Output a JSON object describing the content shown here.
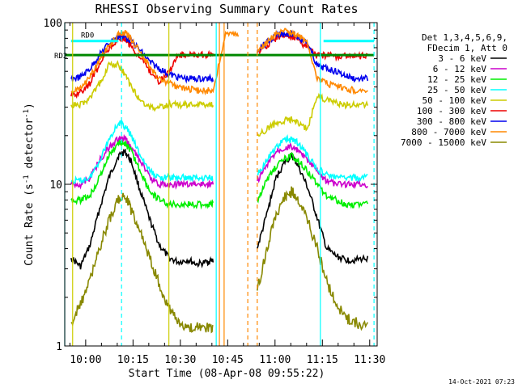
{
  "chart_data": {
    "type": "line",
    "title": "RHESSI Observing Summary Count Rates",
    "xlabel": "Start Time (08-Apr-08 09:55:22)",
    "ylabel_main": "Count Rate (s",
    "ylabel_sup": "-1",
    "ylabel_rest": " detector",
    "ylabel_sup2": "-1",
    "ylabel_end": ")",
    "y_scale": "log",
    "ylim": [
      1,
      100
    ],
    "xlim_minutes_after_start": [
      -2,
      97
    ],
    "x_tick_labels": [
      "10:00",
      "10:15",
      "10:30",
      "10:45",
      "11:00",
      "11:15",
      "11:30"
    ],
    "x_tick_minutes": [
      4.633,
      19.633,
      34.633,
      49.633,
      64.633,
      79.633,
      94.633
    ],
    "y_tick_labels": [
      "1",
      "10",
      "100"
    ],
    "y_tick_values": [
      1,
      10,
      100
    ],
    "legend_header": [
      "Det 1,3,4,5,6,9,",
      "FDecim 1, Att 0"
    ],
    "legend_position": "right",
    "timestamp": "14-Oct-2021 07:23",
    "annotations": {
      "rd0": "RD0",
      "rd2": "RD2"
    },
    "series": [
      {
        "name": "3 - 6 keV",
        "color": "#000000",
        "values": [
          [
            0,
            3.5
          ],
          [
            3,
            3.1
          ],
          [
            6,
            4.2
          ],
          [
            9,
            7
          ],
          [
            12,
            11
          ],
          [
            15,
            15
          ],
          [
            17,
            16
          ],
          [
            19,
            14
          ],
          [
            22,
            9
          ],
          [
            25,
            6
          ],
          [
            28,
            4.2
          ],
          [
            31,
            3.5
          ],
          [
            34,
            3.3
          ],
          [
            37,
            3.4
          ],
          [
            40,
            3.2
          ],
          [
            43,
            3.3
          ],
          [
            45,
            3.4
          ],
          [
            59,
            4
          ],
          [
            62,
            6.5
          ],
          [
            65,
            11
          ],
          [
            68,
            14
          ],
          [
            70,
            15
          ],
          [
            72,
            13
          ],
          [
            75,
            9.5
          ],
          [
            78,
            6.2
          ],
          [
            81,
            4
          ],
          [
            84,
            3.6
          ],
          [
            87,
            3.4
          ],
          [
            90,
            3.4
          ],
          [
            94,
            3.5
          ]
        ]
      },
      {
        "name": "6 - 12 keV",
        "color": "#cc00cc",
        "values": [
          [
            0,
            10
          ],
          [
            3,
            10
          ],
          [
            6,
            11
          ],
          [
            9,
            14
          ],
          [
            12,
            17
          ],
          [
            15,
            19
          ],
          [
            17,
            19
          ],
          [
            19,
            17
          ],
          [
            22,
            14
          ],
          [
            25,
            11
          ],
          [
            28,
            10
          ],
          [
            31,
            10
          ],
          [
            34,
            10
          ],
          [
            37,
            10
          ],
          [
            40,
            10
          ],
          [
            43,
            10
          ],
          [
            45,
            10
          ],
          [
            59,
            10.5
          ],
          [
            62,
            13
          ],
          [
            65,
            16
          ],
          [
            68,
            17
          ],
          [
            70,
            17
          ],
          [
            72,
            16
          ],
          [
            75,
            14
          ],
          [
            78,
            12
          ],
          [
            81,
            10.5
          ],
          [
            84,
            10
          ],
          [
            87,
            10
          ],
          [
            90,
            10
          ],
          [
            94,
            10
          ]
        ]
      },
      {
        "name": "12 - 25 keV",
        "color": "#00ee00",
        "values": [
          [
            0,
            8
          ],
          [
            3,
            8
          ],
          [
            6,
            8.5
          ],
          [
            9,
            11
          ],
          [
            12,
            15
          ],
          [
            15,
            18
          ],
          [
            17,
            18
          ],
          [
            19,
            16
          ],
          [
            22,
            12
          ],
          [
            25,
            9
          ],
          [
            28,
            8
          ],
          [
            31,
            7.5
          ],
          [
            34,
            7.5
          ],
          [
            37,
            7.5
          ],
          [
            40,
            7.5
          ],
          [
            43,
            7.5
          ],
          [
            45,
            7.5
          ],
          [
            59,
            8
          ],
          [
            62,
            10.5
          ],
          [
            65,
            13
          ],
          [
            68,
            14.5
          ],
          [
            70,
            15
          ],
          [
            72,
            14
          ],
          [
            75,
            12
          ],
          [
            78,
            10
          ],
          [
            81,
            8.5
          ],
          [
            84,
            8
          ],
          [
            87,
            7.5
          ],
          [
            90,
            7.5
          ],
          [
            94,
            7.5
          ]
        ]
      },
      {
        "name": "25 - 50 keV",
        "color": "#00ffff",
        "values": [
          [
            0,
            10.5
          ],
          [
            3,
            10.5
          ],
          [
            6,
            11
          ],
          [
            9,
            14
          ],
          [
            12,
            19
          ],
          [
            15,
            24
          ],
          [
            17,
            23
          ],
          [
            19,
            20
          ],
          [
            22,
            15
          ],
          [
            25,
            12
          ],
          [
            28,
            11
          ],
          [
            31,
            11
          ],
          [
            34,
            11
          ],
          [
            37,
            11
          ],
          [
            40,
            11
          ],
          [
            43,
            11
          ],
          [
            45,
            11
          ],
          [
            59,
            11.5
          ],
          [
            62,
            14
          ],
          [
            65,
            17
          ],
          [
            68,
            19
          ],
          [
            70,
            19
          ],
          [
            72,
            18
          ],
          [
            75,
            15
          ],
          [
            78,
            12.5
          ],
          [
            81,
            11.5
          ],
          [
            84,
            11
          ],
          [
            87,
            11
          ],
          [
            90,
            11
          ],
          [
            94,
            11
          ]
        ]
      },
      {
        "name": "50 - 100 keV",
        "color": "#cccc00",
        "values": [
          [
            0,
            31
          ],
          [
            3,
            31
          ],
          [
            6,
            34
          ],
          [
            9,
            42
          ],
          [
            12,
            55
          ],
          [
            15,
            55
          ],
          [
            17,
            48
          ],
          [
            19,
            40
          ],
          [
            22,
            33
          ],
          [
            25,
            30
          ],
          [
            28,
            30
          ],
          [
            31,
            31
          ],
          [
            34,
            31
          ],
          [
            37,
            31
          ],
          [
            40,
            31
          ],
          [
            43,
            31
          ],
          [
            45,
            31
          ],
          [
            59,
            20
          ],
          [
            62,
            22
          ],
          [
            65,
            24
          ],
          [
            68,
            25
          ],
          [
            70,
            25
          ],
          [
            72,
            24
          ],
          [
            75,
            22
          ],
          [
            78,
            36
          ],
          [
            81,
            33
          ],
          [
            84,
            32
          ],
          [
            87,
            31
          ],
          [
            90,
            31
          ],
          [
            94,
            31
          ]
        ]
      },
      {
        "name": "100 - 300 keV",
        "color": "#ee0000",
        "values": [
          [
            0,
            35
          ],
          [
            3,
            37
          ],
          [
            6,
            42
          ],
          [
            9,
            55
          ],
          [
            12,
            70
          ],
          [
            15,
            80
          ],
          [
            17,
            80
          ],
          [
            19,
            72
          ],
          [
            22,
            60
          ],
          [
            25,
            50
          ],
          [
            28,
            43
          ],
          [
            31,
            50
          ],
          [
            34,
            63
          ],
          [
            37,
            63
          ],
          [
            40,
            63
          ],
          [
            43,
            63
          ],
          [
            45,
            63
          ],
          [
            59,
            65
          ],
          [
            62,
            72
          ],
          [
            65,
            80
          ],
          [
            68,
            83
          ],
          [
            70,
            82
          ],
          [
            72,
            78
          ],
          [
            75,
            70
          ],
          [
            78,
            62
          ],
          [
            81,
            63
          ],
          [
            84,
            62
          ],
          [
            87,
            62
          ],
          [
            90,
            62
          ],
          [
            94,
            62
          ]
        ]
      },
      {
        "name": "300 - 800 keV",
        "color": "#0000ee",
        "values": [
          [
            0,
            45
          ],
          [
            3,
            46
          ],
          [
            6,
            52
          ],
          [
            9,
            63
          ],
          [
            12,
            75
          ],
          [
            15,
            82
          ],
          [
            17,
            82
          ],
          [
            19,
            77
          ],
          [
            22,
            67
          ],
          [
            25,
            57
          ],
          [
            28,
            52
          ],
          [
            31,
            48
          ],
          [
            34,
            46
          ],
          [
            37,
            45
          ],
          [
            40,
            45
          ],
          [
            43,
            45
          ],
          [
            45,
            45
          ],
          [
            59,
            68
          ],
          [
            62,
            75
          ],
          [
            65,
            83
          ],
          [
            68,
            86
          ],
          [
            70,
            85
          ],
          [
            72,
            82
          ],
          [
            75,
            74
          ],
          [
            78,
            54
          ],
          [
            81,
            52
          ],
          [
            84,
            50
          ],
          [
            87,
            47
          ],
          [
            90,
            45
          ],
          [
            94,
            45
          ]
        ]
      },
      {
        "name": "800 - 7000 keV",
        "color": "#ff8800",
        "values": [
          [
            0,
            37
          ],
          [
            3,
            39
          ],
          [
            6,
            46
          ],
          [
            9,
            58
          ],
          [
            12,
            72
          ],
          [
            15,
            85
          ],
          [
            17,
            87
          ],
          [
            19,
            80
          ],
          [
            22,
            65
          ],
          [
            25,
            53
          ],
          [
            28,
            45
          ],
          [
            31,
            42
          ],
          [
            34,
            40
          ],
          [
            37,
            39
          ],
          [
            40,
            38
          ],
          [
            43,
            38
          ],
          [
            45,
            38
          ],
          [
            49,
            85
          ],
          [
            53,
            85
          ],
          [
            59,
            66
          ],
          [
            62,
            75
          ],
          [
            65,
            85
          ],
          [
            68,
            88
          ],
          [
            70,
            87
          ],
          [
            72,
            83
          ],
          [
            75,
            75
          ],
          [
            78,
            45
          ],
          [
            81,
            42
          ],
          [
            84,
            40
          ],
          [
            87,
            39
          ],
          [
            90,
            38
          ],
          [
            94,
            38
          ]
        ]
      },
      {
        "name": "7000 - 15000 keV",
        "color": "#888800",
        "values": [
          [
            0,
            1.4
          ],
          [
            3,
            1.8
          ],
          [
            6,
            2.6
          ],
          [
            9,
            4
          ],
          [
            12,
            6
          ],
          [
            15,
            8
          ],
          [
            17,
            8.5
          ],
          [
            19,
            7
          ],
          [
            22,
            5
          ],
          [
            25,
            3.5
          ],
          [
            28,
            2.4
          ],
          [
            31,
            1.7
          ],
          [
            34,
            1.4
          ],
          [
            37,
            1.3
          ],
          [
            40,
            1.3
          ],
          [
            43,
            1.3
          ],
          [
            45,
            1.3
          ],
          [
            59,
            2.2
          ],
          [
            62,
            4
          ],
          [
            65,
            6.5
          ],
          [
            68,
            8.5
          ],
          [
            70,
            9
          ],
          [
            72,
            8
          ],
          [
            75,
            6
          ],
          [
            78,
            4
          ],
          [
            81,
            2.5
          ],
          [
            84,
            1.8
          ],
          [
            87,
            1.5
          ],
          [
            90,
            1.4
          ],
          [
            94,
            1.3
          ]
        ]
      }
    ],
    "rate_lines": [
      {
        "label": "RD0",
        "color": "#00ffff",
        "value": 77,
        "ranges": [
          [
            0,
            15
          ],
          [
            80,
            96
          ]
        ]
      },
      {
        "label": "RD2",
        "color": "#008800",
        "value": 63,
        "ranges": [
          [
            -2,
            96
          ]
        ]
      }
    ],
    "vertical_markers": [
      {
        "color": "#00ffff",
        "style": "solid",
        "minutes": [
          -2,
          46,
          79
        ]
      },
      {
        "color": "#00ffff",
        "style": "dashed",
        "minutes": [
          16,
          96
        ]
      },
      {
        "color": "#ff8800",
        "style": "solid",
        "minutes": [
          47,
          48.5
        ]
      },
      {
        "color": "#ff8800",
        "style": "dashed",
        "minutes": [
          56,
          59
        ]
      },
      {
        "color": "#cccc00",
        "style": "solid",
        "minutes": [
          0.5,
          31
        ]
      }
    ]
  }
}
